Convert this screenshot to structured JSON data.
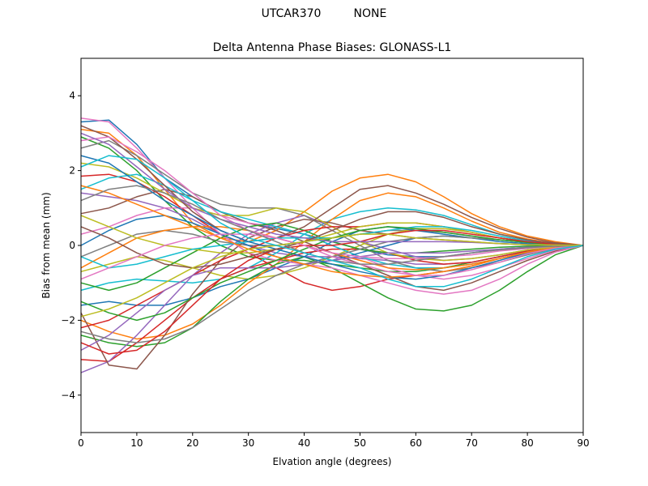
{
  "header": {
    "suptitle": "UTCAR370         NONE"
  },
  "chart_data": {
    "type": "line",
    "title": "Delta Antenna Phase Biases: GLONASS-L1",
    "xlabel": "Elvation angle (degrees)",
    "ylabel": "Bias from mean (mm)",
    "xlim": [
      0,
      90
    ],
    "ylim": [
      -5,
      5
    ],
    "xticks": [
      "0",
      "10",
      "20",
      "30",
      "40",
      "50",
      "60",
      "70",
      "80",
      "90"
    ],
    "yticks": [
      "−4",
      "−2",
      "0",
      "2",
      "4"
    ],
    "grid": false,
    "legend": "none",
    "x": [
      0,
      5,
      10,
      15,
      20,
      25,
      30,
      35,
      40,
      45,
      50,
      55,
      60,
      65,
      70,
      75,
      80,
      85,
      90
    ],
    "colors": [
      "#1f77b4",
      "#ff7f0e",
      "#2ca02c",
      "#d62728",
      "#9467bd",
      "#8c564b",
      "#e377c2",
      "#7f7f7f",
      "#bcbd22",
      "#17becf"
    ],
    "series": [
      {
        "values": [
          3.3,
          3.35,
          2.7,
          1.8,
          1.3,
          0.9,
          0.6,
          0.45,
          0.3,
          0.1,
          -0.1,
          -0.25,
          -0.3,
          -0.3,
          -0.2,
          -0.1,
          -0.05,
          0.0,
          0.0
        ]
      },
      {
        "values": [
          3.1,
          3.0,
          2.4,
          1.5,
          0.6,
          0.2,
          0.1,
          0.4,
          0.9,
          1.45,
          1.8,
          1.9,
          1.7,
          1.3,
          0.85,
          0.5,
          0.25,
          0.1,
          0.0
        ]
      },
      {
        "values": [
          2.9,
          2.6,
          2.0,
          1.2,
          0.5,
          0.0,
          -0.3,
          -0.4,
          -0.4,
          -0.5,
          -0.6,
          -0.7,
          -0.7,
          -0.6,
          -0.45,
          -0.3,
          -0.15,
          -0.05,
          0.0
        ]
      },
      {
        "values": [
          1.85,
          1.9,
          1.7,
          1.3,
          0.8,
          0.3,
          -0.2,
          -0.6,
          -1.0,
          -1.2,
          -1.1,
          -0.9,
          -0.8,
          -0.7,
          -0.55,
          -0.35,
          -0.2,
          -0.08,
          0.0
        ]
      },
      {
        "values": [
          1.4,
          1.3,
          1.2,
          1.0,
          0.7,
          0.3,
          0.0,
          -0.2,
          -0.3,
          -0.3,
          -0.35,
          -0.4,
          -0.5,
          -0.5,
          -0.45,
          -0.3,
          -0.15,
          -0.05,
          0.0
        ]
      },
      {
        "values": [
          0.85,
          1.0,
          1.3,
          1.5,
          1.3,
          0.9,
          0.6,
          0.4,
          0.1,
          -0.2,
          -0.5,
          -0.8,
          -1.1,
          -1.2,
          -1.0,
          -0.7,
          -0.4,
          -0.15,
          0.0
        ]
      },
      {
        "values": [
          0.3,
          0.5,
          0.8,
          1.0,
          1.0,
          0.8,
          0.6,
          0.5,
          0.3,
          0.0,
          -0.3,
          -0.6,
          -0.8,
          -0.9,
          -0.8,
          -0.6,
          -0.35,
          -0.12,
          0.0
        ]
      },
      {
        "values": [
          -0.3,
          0.0,
          0.3,
          0.4,
          0.3,
          0.1,
          0.0,
          0.0,
          0.1,
          0.2,
          0.3,
          0.4,
          0.4,
          0.35,
          0.25,
          0.15,
          0.08,
          0.02,
          0.0
        ]
      },
      {
        "values": [
          -0.7,
          -0.5,
          -0.3,
          -0.4,
          -0.6,
          -0.8,
          -0.9,
          -0.8,
          -0.6,
          -0.3,
          0.0,
          0.3,
          0.45,
          0.45,
          0.35,
          0.2,
          0.1,
          0.03,
          0.0
        ]
      },
      {
        "values": [
          -1.2,
          -1.0,
          -0.9,
          -0.95,
          -1.0,
          -0.9,
          -0.6,
          -0.2,
          0.3,
          0.7,
          0.9,
          1.0,
          0.95,
          0.8,
          0.55,
          0.3,
          0.15,
          0.05,
          0.0
        ]
      },
      {
        "values": [
          -1.6,
          -1.5,
          -1.6,
          -1.6,
          -1.4,
          -1.1,
          -0.9,
          -0.6,
          -0.3,
          0.1,
          0.4,
          0.5,
          0.4,
          0.3,
          0.2,
          0.1,
          0.05,
          0.02,
          0.0
        ]
      },
      {
        "values": [
          -2.0,
          -2.3,
          -2.5,
          -2.4,
          -2.1,
          -1.6,
          -1.0,
          -0.5,
          0.1,
          0.7,
          1.2,
          1.4,
          1.3,
          1.0,
          0.65,
          0.35,
          0.17,
          0.05,
          0.0
        ]
      },
      {
        "values": [
          -2.4,
          -2.6,
          -2.7,
          -2.6,
          -2.2,
          -1.5,
          -0.9,
          -0.5,
          -0.3,
          -0.6,
          -1.0,
          -1.4,
          -1.7,
          -1.75,
          -1.6,
          -1.2,
          -0.7,
          -0.25,
          0.0
        ]
      },
      {
        "values": [
          -3.05,
          -3.1,
          -2.6,
          -2.0,
          -1.4,
          -0.9,
          -0.6,
          -0.4,
          -0.2,
          -0.1,
          -0.1,
          -0.2,
          -0.4,
          -0.5,
          -0.45,
          -0.3,
          -0.15,
          -0.05,
          0.0
        ]
      },
      {
        "values": [
          -3.4,
          -3.1,
          -2.4,
          -1.6,
          -0.8,
          -0.2,
          0.3,
          0.6,
          0.8,
          0.5,
          0.1,
          -0.1,
          -0.3,
          -0.4,
          -0.35,
          -0.25,
          -0.12,
          -0.04,
          0.0
        ]
      },
      {
        "values": [
          -1.8,
          -3.2,
          -3.3,
          -2.4,
          -1.3,
          -0.4,
          0.2,
          0.5,
          0.7,
          0.6,
          0.4,
          0.3,
          0.2,
          0.15,
          0.1,
          0.05,
          0.02,
          0.01,
          0.0
        ]
      },
      {
        "values": [
          3.4,
          3.3,
          2.6,
          1.8,
          1.0,
          0.3,
          -0.2,
          -0.4,
          -0.5,
          -0.6,
          -0.8,
          -1.0,
          -1.2,
          -1.3,
          -1.2,
          -0.9,
          -0.5,
          -0.18,
          0.0
        ]
      },
      {
        "values": [
          2.6,
          2.8,
          2.4,
          1.9,
          1.4,
          1.1,
          1.0,
          1.0,
          0.8,
          0.4,
          0.0,
          -0.4,
          -0.6,
          -0.7,
          -0.6,
          -0.45,
          -0.25,
          -0.08,
          0.0
        ]
      },
      {
        "values": [
          2.2,
          2.1,
          1.8,
          1.4,
          1.0,
          0.8,
          0.8,
          1.0,
          0.9,
          0.5,
          0.1,
          -0.2,
          -0.35,
          -0.4,
          -0.35,
          -0.25,
          -0.12,
          -0.04,
          0.0
        ]
      },
      {
        "values": [
          1.5,
          1.8,
          1.9,
          1.6,
          1.2,
          0.9,
          0.7,
          0.5,
          0.3,
          0.0,
          -0.3,
          -0.5,
          -0.6,
          -0.6,
          -0.5,
          -0.35,
          -0.18,
          -0.06,
          0.0
        ]
      },
      {
        "values": [
          0.0,
          0.4,
          0.7,
          0.8,
          0.6,
          0.3,
          0.0,
          -0.3,
          -0.5,
          -0.4,
          -0.2,
          0.0,
          0.2,
          0.25,
          0.2,
          0.15,
          0.08,
          0.02,
          0.0
        ]
      },
      {
        "values": [
          -0.6,
          -0.2,
          0.2,
          0.4,
          0.5,
          0.5,
          0.4,
          0.2,
          0.0,
          -0.2,
          -0.4,
          -0.6,
          -0.65,
          -0.6,
          -0.5,
          -0.35,
          -0.18,
          -0.06,
          0.0
        ]
      },
      {
        "values": [
          -1.0,
          -1.2,
          -1.0,
          -0.6,
          -0.2,
          0.2,
          0.5,
          0.6,
          0.4,
          0.1,
          -0.1,
          -0.2,
          -0.2,
          -0.15,
          -0.1,
          -0.05,
          -0.02,
          -0.01,
          0.0
        ]
      },
      {
        "values": [
          -2.2,
          -2.0,
          -1.6,
          -1.2,
          -0.8,
          -0.4,
          -0.1,
          0.2,
          0.4,
          0.5,
          0.5,
          0.6,
          0.6,
          0.5,
          0.35,
          0.2,
          0.1,
          0.03,
          0.0
        ]
      },
      {
        "values": [
          -2.8,
          -2.4,
          -1.8,
          -1.2,
          -0.8,
          -0.6,
          -0.6,
          -0.6,
          -0.5,
          -0.4,
          -0.3,
          -0.2,
          -0.2,
          -0.2,
          -0.15,
          -0.1,
          -0.05,
          -0.02,
          0.0
        ]
      },
      {
        "values": [
          3.2,
          2.9,
          2.3,
          1.6,
          0.9,
          0.4,
          0.1,
          0.2,
          0.5,
          1.0,
          1.5,
          1.6,
          1.4,
          1.1,
          0.75,
          0.45,
          0.22,
          0.07,
          0.0
        ]
      },
      {
        "values": [
          2.8,
          2.9,
          2.5,
          2.0,
          1.4,
          0.8,
          0.4,
          0.2,
          0.0,
          -0.2,
          -0.3,
          -0.35,
          -0.35,
          -0.3,
          -0.25,
          -0.15,
          -0.08,
          -0.02,
          0.0
        ]
      },
      {
        "values": [
          -2.3,
          -2.5,
          -2.6,
          -2.5,
          -2.2,
          -1.7,
          -1.2,
          -0.8,
          -0.5,
          -0.3,
          -0.1,
          0.1,
          0.2,
          0.25,
          0.2,
          0.15,
          0.08,
          0.02,
          0.0
        ]
      },
      {
        "values": [
          0.8,
          0.5,
          0.2,
          0.0,
          -0.1,
          -0.2,
          -0.2,
          -0.1,
          0.1,
          0.3,
          0.5,
          0.6,
          0.6,
          0.5,
          0.35,
          0.2,
          0.1,
          0.03,
          0.0
        ]
      },
      {
        "values": [
          -0.3,
          -0.6,
          -0.5,
          -0.3,
          -0.1,
          0.0,
          0.1,
          0.2,
          0.2,
          0.2,
          0.3,
          0.4,
          0.5,
          0.5,
          0.4,
          0.25,
          0.12,
          0.04,
          0.0
        ]
      },
      {
        "values": [
          2.4,
          2.2,
          1.7,
          1.2,
          0.8,
          0.4,
          0.1,
          -0.1,
          -0.3,
          -0.5,
          -0.7,
          -0.85,
          -0.9,
          -0.8,
          -0.6,
          -0.4,
          -0.2,
          -0.06,
          0.0
        ]
      },
      {
        "values": [
          1.6,
          1.4,
          1.1,
          0.8,
          0.5,
          0.2,
          -0.1,
          -0.3,
          -0.5,
          -0.7,
          -0.8,
          -0.85,
          -0.8,
          -0.7,
          -0.55,
          -0.35,
          -0.18,
          -0.06,
          0.0
        ]
      },
      {
        "values": [
          -1.5,
          -1.8,
          -2.0,
          -1.8,
          -1.4,
          -1.0,
          -0.7,
          -0.4,
          -0.1,
          0.2,
          0.4,
          0.5,
          0.45,
          0.35,
          0.25,
          0.15,
          0.08,
          0.02,
          0.0
        ]
      },
      {
        "values": [
          -2.6,
          -2.9,
          -2.8,
          -2.3,
          -1.6,
          -0.9,
          -0.4,
          -0.1,
          0.0,
          0.0,
          0.1,
          0.3,
          0.4,
          0.4,
          0.3,
          0.2,
          0.1,
          0.03,
          0.0
        ]
      },
      {
        "values": [
          3.0,
          2.7,
          2.1,
          1.5,
          1.0,
          0.7,
          0.5,
          0.3,
          0.2,
          0.1,
          0.1,
          0.1,
          0.1,
          0.1,
          0.08,
          0.05,
          0.02,
          0.01,
          0.0
        ]
      },
      {
        "values": [
          0.5,
          0.2,
          -0.2,
          -0.5,
          -0.6,
          -0.5,
          -0.3,
          -0.1,
          0.1,
          0.4,
          0.7,
          0.9,
          0.9,
          0.75,
          0.5,
          0.3,
          0.15,
          0.05,
          0.0
        ]
      },
      {
        "values": [
          -0.9,
          -0.6,
          -0.3,
          0.0,
          0.2,
          0.3,
          0.3,
          0.2,
          0.0,
          -0.3,
          -0.5,
          -0.7,
          -0.8,
          -0.8,
          -0.65,
          -0.45,
          -0.22,
          -0.07,
          0.0
        ]
      },
      {
        "values": [
          1.2,
          1.5,
          1.6,
          1.4,
          1.1,
          0.7,
          0.4,
          0.1,
          -0.2,
          -0.4,
          -0.5,
          -0.5,
          -0.4,
          -0.3,
          -0.2,
          -0.12,
          -0.06,
          -0.02,
          0.0
        ]
      },
      {
        "values": [
          -1.9,
          -1.7,
          -1.4,
          -1.0,
          -0.6,
          -0.3,
          -0.1,
          0.0,
          0.1,
          0.2,
          0.3,
          0.3,
          0.2,
          0.15,
          0.1,
          0.05,
          0.02,
          0.01,
          0.0
        ]
      },
      {
        "values": [
          2.1,
          2.4,
          2.3,
          1.8,
          1.2,
          0.6,
          0.2,
          0.0,
          -0.2,
          -0.4,
          -0.6,
          -0.9,
          -1.1,
          -1.1,
          -0.9,
          -0.6,
          -0.3,
          -0.1,
          0.0
        ]
      }
    ]
  }
}
